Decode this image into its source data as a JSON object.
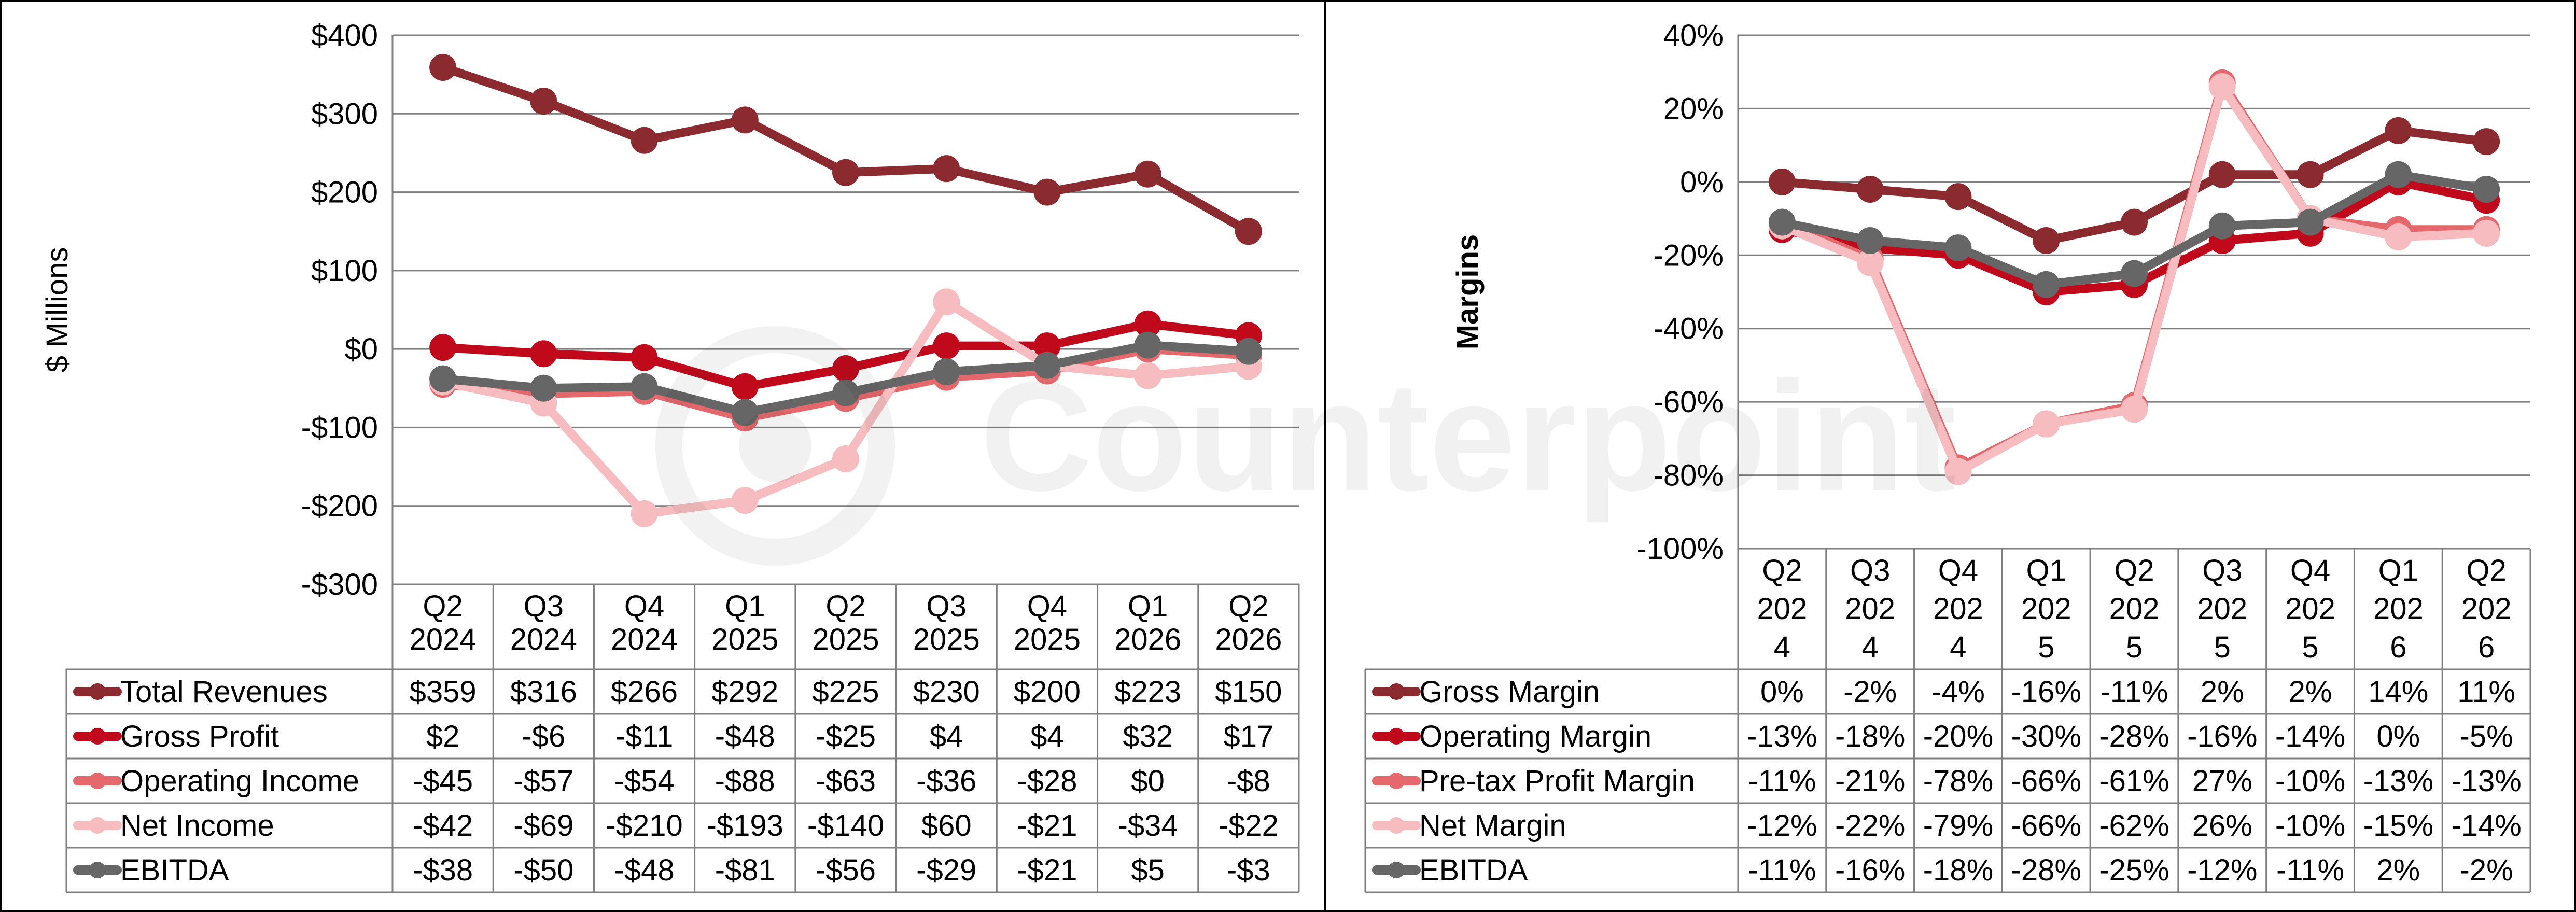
{
  "watermark": "Counterpoint",
  "colors": {
    "dark_red": "#8B2A2F",
    "red": "#C00A1C",
    "salmon": "#E5696C",
    "pink": "#F6BCBF",
    "grey": "#666666",
    "grid": "#7F7F7F"
  },
  "chart_data": [
    {
      "type": "line",
      "ylabel": "$ Millions",
      "ylim": [
        -300,
        400
      ],
      "ytick_values": [
        400,
        300,
        200,
        100,
        0,
        -100,
        -200,
        -300
      ],
      "ytick_labels": [
        "$400",
        "$300",
        "$200",
        "$100",
        "$0",
        "-$100",
        "-$200",
        "-$300"
      ],
      "categories": [
        [
          "Q2",
          "2024"
        ],
        [
          "Q3",
          "2024"
        ],
        [
          "Q4",
          "2024"
        ],
        [
          "Q1",
          "2025"
        ],
        [
          "Q2",
          "2025"
        ],
        [
          "Q3",
          "2025"
        ],
        [
          "Q4",
          "2025"
        ],
        [
          "Q1",
          "2026"
        ],
        [
          "Q2",
          "2026"
        ]
      ],
      "series": [
        {
          "name": "Total Revenues",
          "color": "#8B2A2F",
          "values": [
            359,
            316,
            266,
            292,
            225,
            230,
            200,
            223,
            150
          ],
          "labels": [
            "$359",
            "$316",
            "$266",
            "$292",
            "$225",
            "$230",
            "$200",
            "$223",
            "$150"
          ]
        },
        {
          "name": "Gross Profit",
          "color": "#C00A1C",
          "values": [
            2,
            -6,
            -11,
            -48,
            -25,
            4,
            4,
            32,
            17
          ],
          "labels": [
            "$2",
            "-$6",
            "-$11",
            "-$48",
            "-$25",
            "$4",
            "$4",
            "$32",
            "$17"
          ]
        },
        {
          "name": "Operating Income",
          "color": "#E5696C",
          "values": [
            -45,
            -57,
            -54,
            -88,
            -63,
            -36,
            -28,
            0,
            -8
          ],
          "labels": [
            "-$45",
            "-$57",
            "-$54",
            "-$88",
            "-$63",
            "-$36",
            "-$28",
            "$0",
            "-$8"
          ]
        },
        {
          "name": "Net Income",
          "color": "#F6BCBF",
          "values": [
            -42,
            -69,
            -210,
            -193,
            -140,
            60,
            -21,
            -34,
            -22
          ],
          "labels": [
            "-$42",
            "-$69",
            "-$210",
            "-$193",
            "-$140",
            "$60",
            "-$21",
            "-$34",
            "-$22"
          ]
        },
        {
          "name": "EBITDA",
          "color": "#666666",
          "values": [
            -38,
            -50,
            -48,
            -81,
            -56,
            -29,
            -21,
            5,
            -3
          ],
          "labels": [
            "-$38",
            "-$50",
            "-$48",
            "-$81",
            "-$56",
            "-$29",
            "-$21",
            "$5",
            "-$3"
          ]
        }
      ]
    },
    {
      "type": "line",
      "ylabel": "Margins",
      "ylim": [
        -100,
        40
      ],
      "ytick_values": [
        40,
        20,
        0,
        -20,
        -40,
        -60,
        -80,
        -100
      ],
      "ytick_labels": [
        "40%",
        "20%",
        "0%",
        "-20%",
        "-40%",
        "-60%",
        "-80%",
        "-100%"
      ],
      "categories": [
        [
          "Q2",
          "202",
          "4"
        ],
        [
          "Q3",
          "202",
          "4"
        ],
        [
          "Q4",
          "202",
          "4"
        ],
        [
          "Q1",
          "202",
          "5"
        ],
        [
          "Q2",
          "202",
          "5"
        ],
        [
          "Q3",
          "202",
          "5"
        ],
        [
          "Q4",
          "202",
          "5"
        ],
        [
          "Q1",
          "202",
          "6"
        ],
        [
          "Q2",
          "202",
          "6"
        ]
      ],
      "series": [
        {
          "name": "Gross Margin",
          "color": "#8B2A2F",
          "values": [
            0,
            -2,
            -4,
            -16,
            -11,
            2,
            2,
            14,
            11
          ],
          "labels": [
            "0%",
            "-2%",
            "-4%",
            "-16%",
            "-11%",
            "2%",
            "2%",
            "14%",
            "11%"
          ]
        },
        {
          "name": "Operating Margin",
          "color": "#C00A1C",
          "values": [
            -13,
            -18,
            -20,
            -30,
            -28,
            -16,
            -14,
            0,
            -5
          ],
          "labels": [
            "-13%",
            "-18%",
            "-20%",
            "-30%",
            "-28%",
            "-16%",
            "-14%",
            "0%",
            "-5%"
          ]
        },
        {
          "name": "Pre-tax Profit Margin",
          "color": "#E5696C",
          "values": [
            -11,
            -21,
            -78,
            -66,
            -61,
            27,
            -10,
            -13,
            -13
          ],
          "labels": [
            "-11%",
            "-21%",
            "-78%",
            "-66%",
            "-61%",
            "27%",
            "-10%",
            "-13%",
            "-13%"
          ]
        },
        {
          "name": "Net Margin",
          "color": "#F6BCBF",
          "values": [
            -12,
            -22,
            -79,
            -66,
            -62,
            26,
            -10,
            -15,
            -14
          ],
          "labels": [
            "-12%",
            "-22%",
            "-79%",
            "-66%",
            "-62%",
            "26%",
            "-10%",
            "-15%",
            "-14%"
          ]
        },
        {
          "name": "EBITDA",
          "color": "#666666",
          "values": [
            -11,
            -16,
            -18,
            -28,
            -25,
            -12,
            -11,
            2,
            -2
          ],
          "labels": [
            "-11%",
            "-16%",
            "-18%",
            "-28%",
            "-25%",
            "-12%",
            "-11%",
            "2%",
            "-2%"
          ]
        }
      ]
    }
  ]
}
